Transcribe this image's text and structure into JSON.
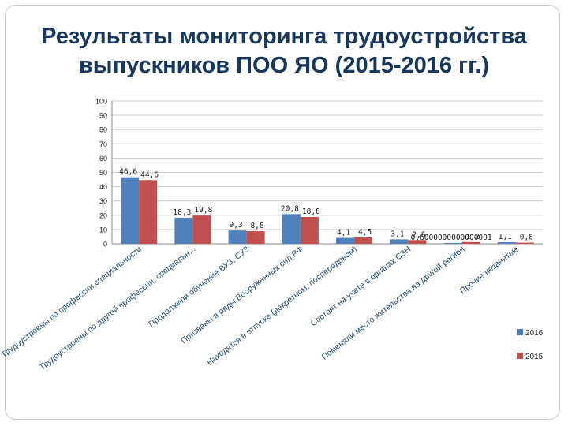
{
  "title": {
    "line1": "Результаты мониторинга трудоустройства",
    "line2": "выпускников ПОО ЯО (2015-2016 гг.)"
  },
  "colors": {
    "s2016": "#4f81bd",
    "s2015": "#c0504d",
    "grid": "#bfbfbf",
    "text": "#1a1a1a",
    "category_text": "#1f4e79"
  },
  "chart_data": {
    "type": "bar",
    "title": "Результаты мониторинга трудоустройства выпускников ПОО ЯО (2015-2016 гг.)",
    "xlabel": "",
    "ylabel": "",
    "ylim": [
      0,
      100
    ],
    "yticks": [
      0,
      10,
      20,
      30,
      40,
      50,
      60,
      70,
      80,
      90,
      100
    ],
    "grid": true,
    "legend_position": "right",
    "categories": [
      "Трудоустроены по профессии,специальности",
      "Трудоустроены по другой профессии, специальн...",
      "Продолжили обучение ВУЗ, СУЗ",
      "Призваны в ряды Вооруженных сил РФ",
      "Находятся в отпуске (декретном, послеродовом)",
      "Состоят на учете в органах СЗН",
      "Поменяли место жительства на другой регион",
      "Прочие незанятые"
    ],
    "series": [
      {
        "name": "2016",
        "values": [
          46.6,
          18.3,
          9.3,
          20.8,
          4.1,
          3.1,
          0.6,
          1.1
        ],
        "labels": [
          "46,6",
          "18,3",
          "9,3",
          "20,8",
          "4,1",
          "3,1",
          "0,6000000000000001",
          "1,1"
        ]
      },
      {
        "name": "2015",
        "values": [
          44.6,
          19.8,
          8.8,
          18.8,
          4.5,
          2.6,
          1.2,
          0.8
        ],
        "labels": [
          "44,6",
          "19,8",
          "8,8",
          "18,8",
          "4,5",
          "2,6",
          "1,2",
          "0,8"
        ]
      }
    ]
  }
}
